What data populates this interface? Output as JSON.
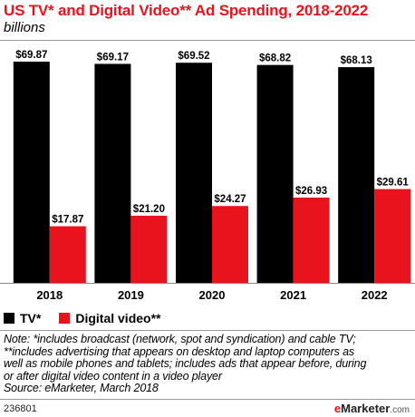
{
  "title": "US TV* and Digital Video** Ad Spending, 2018-2022",
  "subtitle": "billions",
  "legend": [
    {
      "label": "TV*",
      "color": "#000000"
    },
    {
      "label": "Digital video**",
      "color": "#e8131c"
    }
  ],
  "chart_data": {
    "type": "bar",
    "title": "US TV* and Digital Video** Ad Spending, 2018-2022",
    "subtitle": "billions",
    "categories": [
      "2018",
      "2019",
      "2020",
      "2021",
      "2022"
    ],
    "series": [
      {
        "name": "TV*",
        "color": "#000000",
        "values": [
          69.87,
          69.17,
          69.52,
          68.82,
          68.13
        ],
        "labels": [
          "$69.87",
          "$69.17",
          "$69.52",
          "$68.82",
          "$68.13"
        ]
      },
      {
        "name": "Digital video**",
        "color": "#e8131c",
        "values": [
          17.87,
          21.2,
          24.27,
          26.93,
          29.61
        ],
        "labels": [
          "$17.87",
          "$21.20",
          "$24.27",
          "$26.93",
          "$29.61"
        ]
      }
    ],
    "ylim": [
      0,
      69.87
    ],
    "grid": false,
    "legend_position": "bottom-left"
  },
  "note_lines": [
    "Note: *includes broadcast (network, spot and syndication) and cable TV;",
    "**includes advertising that appears on desktop and laptop computers as",
    "well as mobile phones and tablets; includes ads that appear before, during",
    "or after digital video content in a video player",
    "Source: eMarketer, March 2018"
  ],
  "footer": {
    "chart_id": "236801",
    "brand_prefix": "e",
    "brand_main": "Marketer",
    "brand_suffix": ".com"
  }
}
